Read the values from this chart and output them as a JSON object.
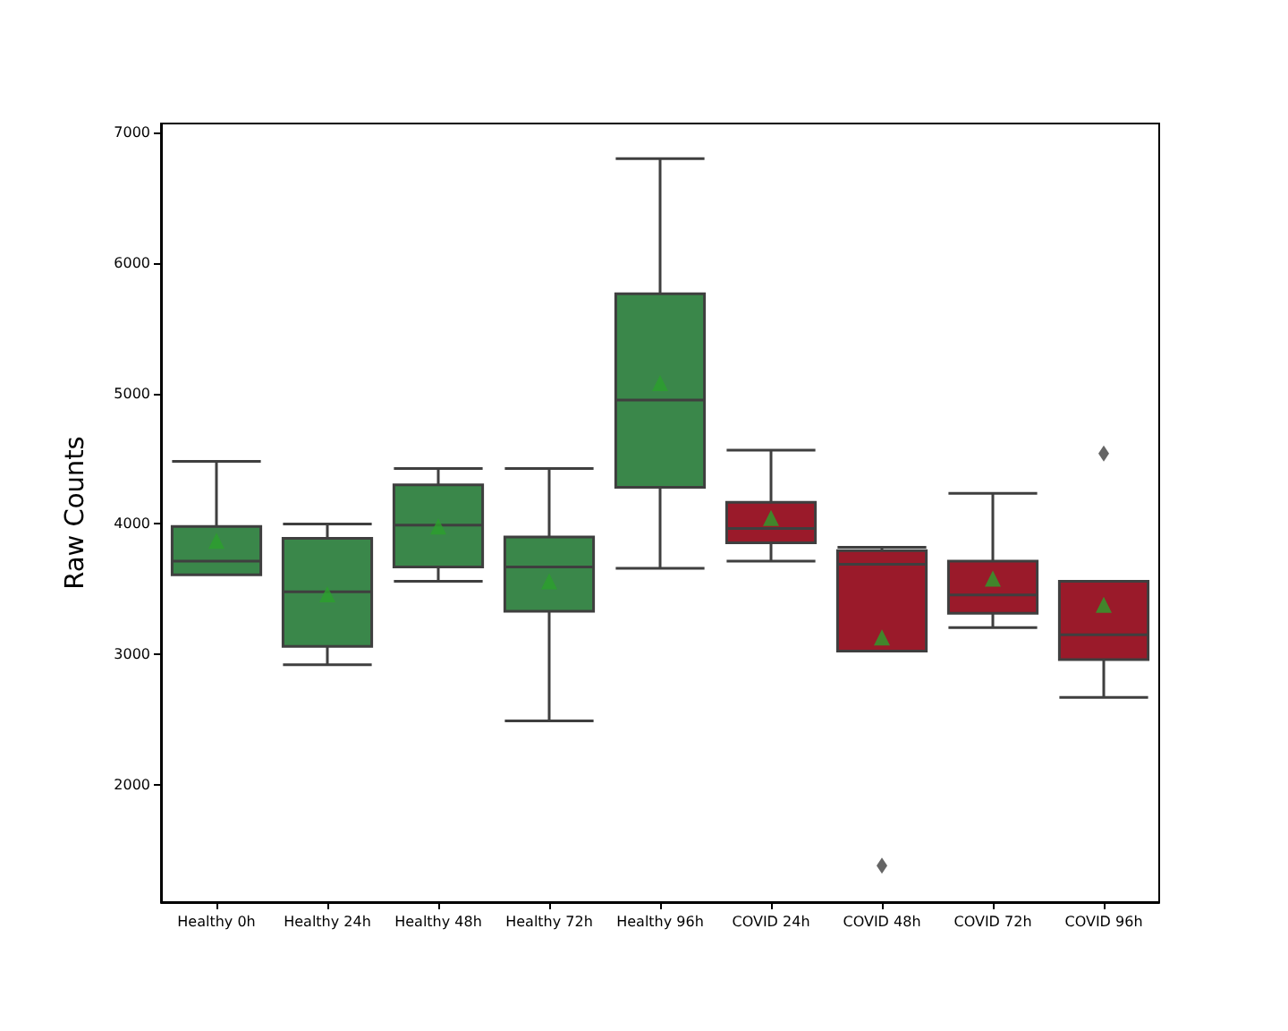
{
  "chart_data": {
    "type": "box",
    "ylabel": "Raw Counts",
    "categories": [
      "Healthy 0h",
      "Healthy 24h",
      "Healthy 48h",
      "Healthy 72h",
      "Healthy 96h",
      "COVID 24h",
      "COVID 48h",
      "COVID 72h",
      "COVID 96h"
    ],
    "colors": [
      "#3a874a",
      "#3a874a",
      "#3a874a",
      "#3a874a",
      "#3a874a",
      "#9a1a2a",
      "#9a1a2a",
      "#9a1a2a",
      "#9a1a2a"
    ],
    "boxes": [
      {
        "low": 3610,
        "q1": 3610,
        "median": 3715,
        "q3": 3980,
        "high": 4480,
        "mean": 3870
      },
      {
        "low": 2920,
        "q1": 3060,
        "median": 3480,
        "q3": 3890,
        "high": 4000,
        "mean": 3460
      },
      {
        "low": 3560,
        "q1": 3670,
        "median": 3990,
        "q3": 4300,
        "high": 4425,
        "mean": 3980
      },
      {
        "low": 2490,
        "q1": 3330,
        "median": 3670,
        "q3": 3900,
        "high": 4425,
        "mean": 3560
      },
      {
        "low": 3660,
        "q1": 4280,
        "median": 4950,
        "q3": 5765,
        "high": 6800,
        "mean": 5080
      },
      {
        "low": 3715,
        "q1": 3855,
        "median": 3965,
        "q3": 4165,
        "high": 4565,
        "mean": 4045
      },
      {
        "low": 3025,
        "q1": 3025,
        "median": 3690,
        "q3": 3795,
        "high": 3820,
        "mean": 3130,
        "outliers": [
          1380
        ]
      },
      {
        "low": 3205,
        "q1": 3315,
        "median": 3455,
        "q3": 3715,
        "high": 4235,
        "mean": 3580
      },
      {
        "low": 2670,
        "q1": 2960,
        "median": 3150,
        "q3": 3560,
        "high": 3560,
        "mean": 3380,
        "outliers": [
          4540
        ]
      }
    ],
    "ylim": [
      1100,
      7070
    ],
    "yticks": [
      2000,
      3000,
      4000,
      5000,
      6000,
      7000
    ],
    "marker": "triangle"
  }
}
